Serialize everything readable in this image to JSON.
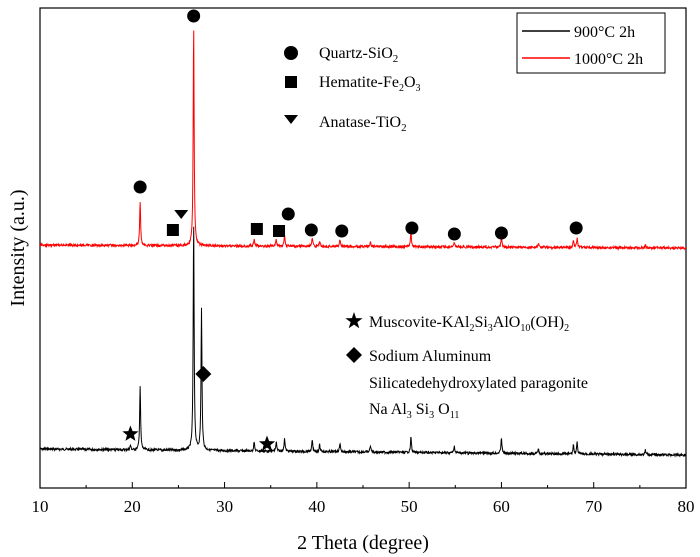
{
  "chart_data": {
    "type": "line",
    "xlabel": "2 Theta (degree)",
    "ylabel": "Intensity (a.u.)",
    "xlim": [
      10,
      80
    ],
    "x_ticks": [
      "10",
      "20",
      "30",
      "40",
      "50",
      "60",
      "70",
      "80"
    ],
    "y_ticks_shown": false,
    "legend": {
      "position": "top-right",
      "entries": [
        {
          "label": "900°C 2h",
          "color": "#000000"
        },
        {
          "label": "1000°C 2h",
          "color": "#ff0000"
        }
      ]
    },
    "series": [
      {
        "name": "900°C 2h",
        "color": "#000000",
        "baseline": 0.0,
        "peaks": [
          {
            "x": 19.8,
            "h": 0.02
          },
          {
            "x": 20.85,
            "h": 0.28
          },
          {
            "x": 26.65,
            "h": 1.0
          },
          {
            "x": 27.5,
            "h": 0.62
          },
          {
            "x": 33.2,
            "h": 0.04
          },
          {
            "x": 35.6,
            "h": 0.04
          },
          {
            "x": 36.5,
            "h": 0.06
          },
          {
            "x": 39.5,
            "h": 0.05
          },
          {
            "x": 40.3,
            "h": 0.03
          },
          {
            "x": 42.5,
            "h": 0.04
          },
          {
            "x": 45.8,
            "h": 0.03
          },
          {
            "x": 50.2,
            "h": 0.07
          },
          {
            "x": 54.9,
            "h": 0.03
          },
          {
            "x": 60.0,
            "h": 0.07
          },
          {
            "x": 64.0,
            "h": 0.02
          },
          {
            "x": 67.8,
            "h": 0.04
          },
          {
            "x": 68.2,
            "h": 0.05
          },
          {
            "x": 75.6,
            "h": 0.02
          }
        ]
      },
      {
        "name": "1000°C 2h",
        "color": "#ff0000",
        "baseline": 1.0,
        "peaks": [
          {
            "x": 20.85,
            "h": 0.2
          },
          {
            "x": 26.65,
            "h": 1.0
          },
          {
            "x": 33.2,
            "h": 0.03
          },
          {
            "x": 35.6,
            "h": 0.03
          },
          {
            "x": 36.5,
            "h": 0.05
          },
          {
            "x": 39.5,
            "h": 0.04
          },
          {
            "x": 40.3,
            "h": 0.02
          },
          {
            "x": 42.5,
            "h": 0.03
          },
          {
            "x": 45.8,
            "h": 0.02
          },
          {
            "x": 50.2,
            "h": 0.07
          },
          {
            "x": 54.9,
            "h": 0.02
          },
          {
            "x": 60.0,
            "h": 0.05
          },
          {
            "x": 64.0,
            "h": 0.02
          },
          {
            "x": 67.8,
            "h": 0.03
          },
          {
            "x": 68.2,
            "h": 0.04
          },
          {
            "x": 75.6,
            "h": 0.01
          }
        ]
      }
    ],
    "annotations_top": [
      {
        "symbol": "circle",
        "label": "Quartz-SiO2",
        "label_main": "Quartz-SiO",
        "label_sub": "2",
        "label_tail": ""
      },
      {
        "symbol": "square",
        "label": "Hematite-Fe2O3",
        "label_main": "Hematite-Fe",
        "label_sub": "2",
        "label_tail": "O",
        "label_sub2": "3"
      },
      {
        "symbol": "triangle-down",
        "label": "Anatase-TiO2",
        "label_main": "Anatase-TiO",
        "label_sub": "2",
        "label_tail": ""
      }
    ],
    "annotations_bottom": [
      {
        "symbol": "star",
        "label": "Muscovite-KAl2Si3AlO10(OH)2"
      },
      {
        "symbol": "diamond",
        "label": "Sodium Aluminum Silicatedehydroxylated paragonite Na Al3 Si3 O11"
      }
    ],
    "markers": [
      {
        "symbol": "circle",
        "series": "1000°C 2h",
        "x": 26.65
      },
      {
        "symbol": "circle",
        "series": "1000°C 2h",
        "x": 20.85
      },
      {
        "symbol": "triangle-down",
        "series": "1000°C 2h",
        "x": 25.3
      },
      {
        "symbol": "square",
        "series": "1000°C 2h",
        "x": 24.4
      },
      {
        "symbol": "square",
        "series": "1000°C 2h",
        "x": 33.5
      },
      {
        "symbol": "square",
        "series": "1000°C 2h",
        "x": 35.9
      },
      {
        "symbol": "circle",
        "series": "1000°C 2h",
        "x": 36.9
      },
      {
        "symbol": "circle",
        "series": "1000°C 2h",
        "x": 39.4
      },
      {
        "symbol": "circle",
        "series": "1000°C 2h",
        "x": 42.7
      },
      {
        "symbol": "circle",
        "series": "1000°C 2h",
        "x": 50.3
      },
      {
        "symbol": "circle",
        "series": "1000°C 2h",
        "x": 54.9
      },
      {
        "symbol": "circle",
        "series": "1000°C 2h",
        "x": 60.0
      },
      {
        "symbol": "circle",
        "series": "1000°C 2h",
        "x": 68.1
      },
      {
        "symbol": "star",
        "series": "900°C 2h",
        "x": 19.8
      },
      {
        "symbol": "star",
        "series": "900°C 2h",
        "x": 34.6
      },
      {
        "symbol": "diamond",
        "series": "900°C 2h",
        "x": 27.7
      }
    ]
  }
}
